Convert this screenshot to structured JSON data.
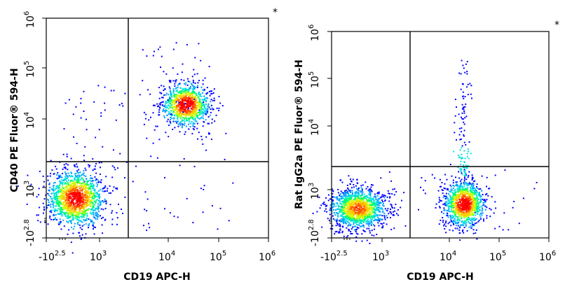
{
  "chart_data": [
    {
      "type": "scatter",
      "style": "density dot plot",
      "xlabel": "CD19 APC-H",
      "ylabel": "CD40 PE Fluor® 594-H",
      "marker": "*",
      "x_ticks": [
        {
          "base": "-10",
          "exp": "2.5"
        },
        {
          "base": "10",
          "exp": "3"
        },
        {
          "base": "10",
          "exp": "4"
        },
        {
          "base": "10",
          "exp": "5"
        },
        {
          "base": "10",
          "exp": "6"
        }
      ],
      "y_ticks": [
        {
          "base": "-10",
          "exp": "2.8"
        },
        {
          "base": "10",
          "exp": "3"
        },
        {
          "base": "10",
          "exp": "4"
        },
        {
          "base": "10",
          "exp": "5"
        },
        {
          "base": "10",
          "exp": "6"
        }
      ],
      "quadrant_gate": {
        "x": 2500,
        "y": 2000
      },
      "populations": [
        {
          "label": "CD19- CD40-",
          "x_center": 400,
          "y_center": 800
        },
        {
          "label": "CD19+ CD40+",
          "x_center": 15000,
          "y_center": 25000
        }
      ]
    },
    {
      "type": "scatter",
      "style": "density dot plot",
      "xlabel": "CD19 APC-H",
      "ylabel": "Rat IgG2a PE Fluor® 594-H",
      "marker": "*",
      "x_ticks": [
        {
          "base": "-10",
          "exp": "2.5"
        },
        {
          "base": "10",
          "exp": "3"
        },
        {
          "base": "10",
          "exp": "4"
        },
        {
          "base": "10",
          "exp": "5"
        },
        {
          "base": "10",
          "exp": "6"
        }
      ],
      "y_ticks": [
        {
          "base": "-10",
          "exp": "2.8"
        },
        {
          "base": "10",
          "exp": "3"
        },
        {
          "base": "10",
          "exp": "4"
        },
        {
          "base": "10",
          "exp": "5"
        },
        {
          "base": "10",
          "exp": "6"
        }
      ],
      "quadrant_gate": {
        "x": 2500,
        "y": 2000
      },
      "populations": [
        {
          "label": "CD19- IgG2a-",
          "x_center": 400,
          "y_center": 800
        },
        {
          "label": "CD19+ IgG2a-",
          "x_center": 15000,
          "y_center": 700
        }
      ]
    }
  ],
  "colors": {
    "density_scale": [
      "#0000ff",
      "#00a0ff",
      "#00e0e0",
      "#00ff66",
      "#ccff00",
      "#ffc800",
      "#ff5a00",
      "#ff0000"
    ],
    "frame": "#000000"
  }
}
